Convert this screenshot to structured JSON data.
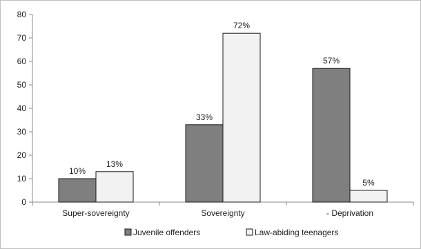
{
  "chart_data": {
    "type": "bar",
    "title": "",
    "xlabel": "",
    "ylabel": "",
    "categories": [
      "Super-sovereignty",
      "Sovereignty",
      "- Deprivation"
    ],
    "series": [
      {
        "name": "Juvenile offenders",
        "values": [
          10,
          33,
          57
        ],
        "labels": [
          "10%",
          "33%",
          "57%"
        ],
        "color": "#7f7f7f"
      },
      {
        "name": "Law-abiding teenagers",
        "values": [
          13,
          72,
          5
        ],
        "labels": [
          "13%",
          "72%",
          "5%"
        ],
        "color": "#f2f2f2"
      }
    ],
    "ylim": [
      0,
      80
    ],
    "yticks": [
      0,
      10,
      20,
      30,
      40,
      50,
      60,
      70,
      80
    ],
    "grid": false,
    "legend_position": "bottom"
  }
}
